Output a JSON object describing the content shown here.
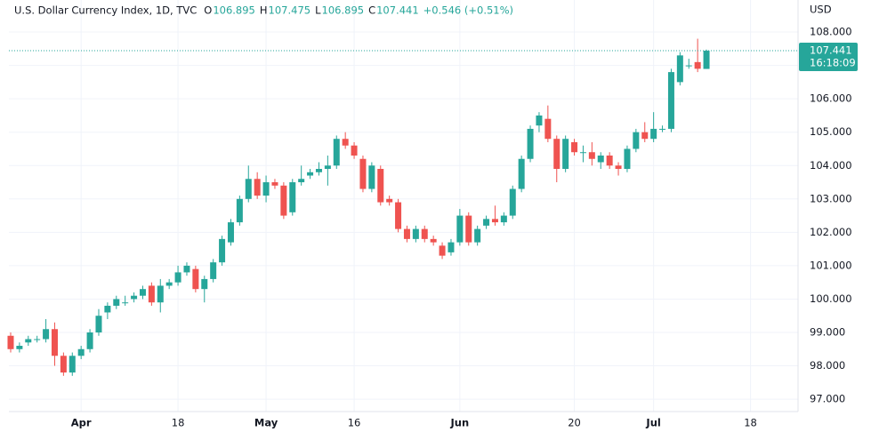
{
  "chart_data": {
    "type": "candlestick",
    "title": "U.S. Dollar Currency Index, 1D, TVC",
    "ohlc_legend": {
      "open_label": "O",
      "open": "106.895",
      "high_label": "H",
      "high": "107.475",
      "low_label": "L",
      "low": "106.895",
      "close_label": "C",
      "close": "107.441",
      "change": "+0.546 (+0.51%)"
    },
    "currency": "USD",
    "last_price": 107.441,
    "countdown": "16:18:09",
    "up_color": "#26a69a",
    "down_color": "#ef5350",
    "x": [
      -8,
      -7,
      -6,
      -5,
      -4,
      -3,
      -2,
      -1,
      0,
      1,
      2,
      3,
      4,
      5,
      6,
      7,
      8,
      9,
      10,
      11,
      12,
      13,
      14,
      15,
      16,
      17,
      18,
      19,
      20,
      21,
      22,
      23,
      24,
      25,
      26,
      27,
      28,
      29,
      30,
      31,
      32,
      33,
      34,
      35,
      36,
      37,
      38,
      39,
      40,
      41,
      42,
      43,
      44,
      45,
      46,
      47,
      48,
      49,
      50,
      51,
      52,
      53,
      54,
      55,
      56,
      57,
      58,
      59,
      60,
      61,
      62,
      63,
      64,
      65,
      66,
      67,
      68,
      69,
      70,
      71
    ],
    "open": [
      98.9,
      98.5,
      98.7,
      98.8,
      98.8,
      99.1,
      98.3,
      97.8,
      98.3,
      98.5,
      99.0,
      99.6,
      99.8,
      99.9,
      100.0,
      100.1,
      100.4,
      99.9,
      100.4,
      100.5,
      100.8,
      100.9,
      100.3,
      100.6,
      101.1,
      101.7,
      102.3,
      103.0,
      103.6,
      103.1,
      103.5,
      103.4,
      102.6,
      103.5,
      103.7,
      103.8,
      103.9,
      104.0,
      104.8,
      104.6,
      104.2,
      103.3,
      103.9,
      103.0,
      102.9,
      102.1,
      101.8,
      102.1,
      101.8,
      101.6,
      101.4,
      101.7,
      102.5,
      101.7,
      102.2,
      102.4,
      102.3,
      102.5,
      103.3,
      104.2,
      105.2,
      105.4,
      104.8,
      103.9,
      104.7,
      104.4,
      104.4,
      104.1,
      104.3,
      104.0,
      103.9,
      104.5,
      105.0,
      104.8,
      105.1,
      105.1,
      106.5,
      107.0,
      107.1,
      106.895
    ],
    "high": [
      99.0,
      98.7,
      98.9,
      98.9,
      99.4,
      99.3,
      98.4,
      98.4,
      98.6,
      99.1,
      99.7,
      99.9,
      100.1,
      100.1,
      100.2,
      100.4,
      100.5,
      100.6,
      100.6,
      101.0,
      101.1,
      101.0,
      100.7,
      101.2,
      101.9,
      102.4,
      103.1,
      104.0,
      103.8,
      103.7,
      103.6,
      103.5,
      103.6,
      104.0,
      103.9,
      104.1,
      104.3,
      104.9,
      105.0,
      104.7,
      104.3,
      104.1,
      104.0,
      103.1,
      103.0,
      102.2,
      102.2,
      102.2,
      101.9,
      101.7,
      101.8,
      102.7,
      102.6,
      102.2,
      102.5,
      102.8,
      102.6,
      103.4,
      104.3,
      105.2,
      105.6,
      105.8,
      104.9,
      104.9,
      104.8,
      104.6,
      104.7,
      104.4,
      104.4,
      104.1,
      104.6,
      105.1,
      105.3,
      105.6,
      105.2,
      106.9,
      107.4,
      107.2,
      107.8,
      107.475
    ],
    "low": [
      98.4,
      98.4,
      98.6,
      98.7,
      98.7,
      98.0,
      97.7,
      97.7,
      98.2,
      98.4,
      98.9,
      99.4,
      99.7,
      99.8,
      99.9,
      100.0,
      99.8,
      99.6,
      100.3,
      100.4,
      100.7,
      100.2,
      99.9,
      100.5,
      101.0,
      101.6,
      102.2,
      102.9,
      103.0,
      102.9,
      103.3,
      102.4,
      102.5,
      103.4,
      103.6,
      103.7,
      103.4,
      103.9,
      104.5,
      104.2,
      103.2,
      103.2,
      102.8,
      102.8,
      102.0,
      101.7,
      101.7,
      101.7,
      101.6,
      101.2,
      101.3,
      101.6,
      101.6,
      101.6,
      102.1,
      102.2,
      102.2,
      102.4,
      103.2,
      104.1,
      105.0,
      104.7,
      103.5,
      103.8,
      104.3,
      104.1,
      104.0,
      103.9,
      103.9,
      103.7,
      103.8,
      104.4,
      104.7,
      104.7,
      105.0,
      105.0,
      106.4,
      106.9,
      106.8,
      106.895
    ],
    "close": [
      98.5,
      98.6,
      98.8,
      98.8,
      99.1,
      98.3,
      97.8,
      98.3,
      98.5,
      99.0,
      99.5,
      99.8,
      100.0,
      99.9,
      100.1,
      100.3,
      99.9,
      100.4,
      100.5,
      100.8,
      101.0,
      100.3,
      100.6,
      101.1,
      101.8,
      102.3,
      103.0,
      103.6,
      103.1,
      103.5,
      103.4,
      102.5,
      103.5,
      103.6,
      103.8,
      103.9,
      104.0,
      104.8,
      104.6,
      104.3,
      103.3,
      104.0,
      102.9,
      102.9,
      102.1,
      101.8,
      102.1,
      101.8,
      101.7,
      101.3,
      101.7,
      102.5,
      101.7,
      102.1,
      102.4,
      102.3,
      102.5,
      103.3,
      104.2,
      105.1,
      105.5,
      104.8,
      103.9,
      104.8,
      104.4,
      104.4,
      104.2,
      104.3,
      104.0,
      103.9,
      104.5,
      105.0,
      104.8,
      105.1,
      105.1,
      106.8,
      107.3,
      107.0,
      106.9,
      107.441
    ],
    "xlim": [
      -8.2,
      81.4
    ],
    "xticks": [
      {
        "value": 0,
        "label": "Apr"
      },
      {
        "value": 11,
        "label": "18"
      },
      {
        "value": 21,
        "label": "May"
      },
      {
        "value": 31,
        "label": "16"
      },
      {
        "value": 43,
        "label": "Jun"
      },
      {
        "value": 56,
        "label": "20"
      },
      {
        "value": 65,
        "label": "Jul"
      },
      {
        "value": 76,
        "label": "18"
      }
    ],
    "ylim": [
      96.63,
      108.96
    ],
    "yticks": [
      {
        "value": 97,
        "label": "97.000"
      },
      {
        "value": 98,
        "label": "98.000"
      },
      {
        "value": 99,
        "label": "99.000"
      },
      {
        "value": 100,
        "label": "100.000"
      },
      {
        "value": 101,
        "label": "101.000"
      },
      {
        "value": 102,
        "label": "102.000"
      },
      {
        "value": 103,
        "label": "103.000"
      },
      {
        "value": 104,
        "label": "104.000"
      },
      {
        "value": 105,
        "label": "105.000"
      },
      {
        "value": 106,
        "label": "106.000"
      },
      {
        "value": 107,
        "label": "107.000"
      },
      {
        "value": 108,
        "label": "108.000"
      }
    ],
    "grid": true
  }
}
